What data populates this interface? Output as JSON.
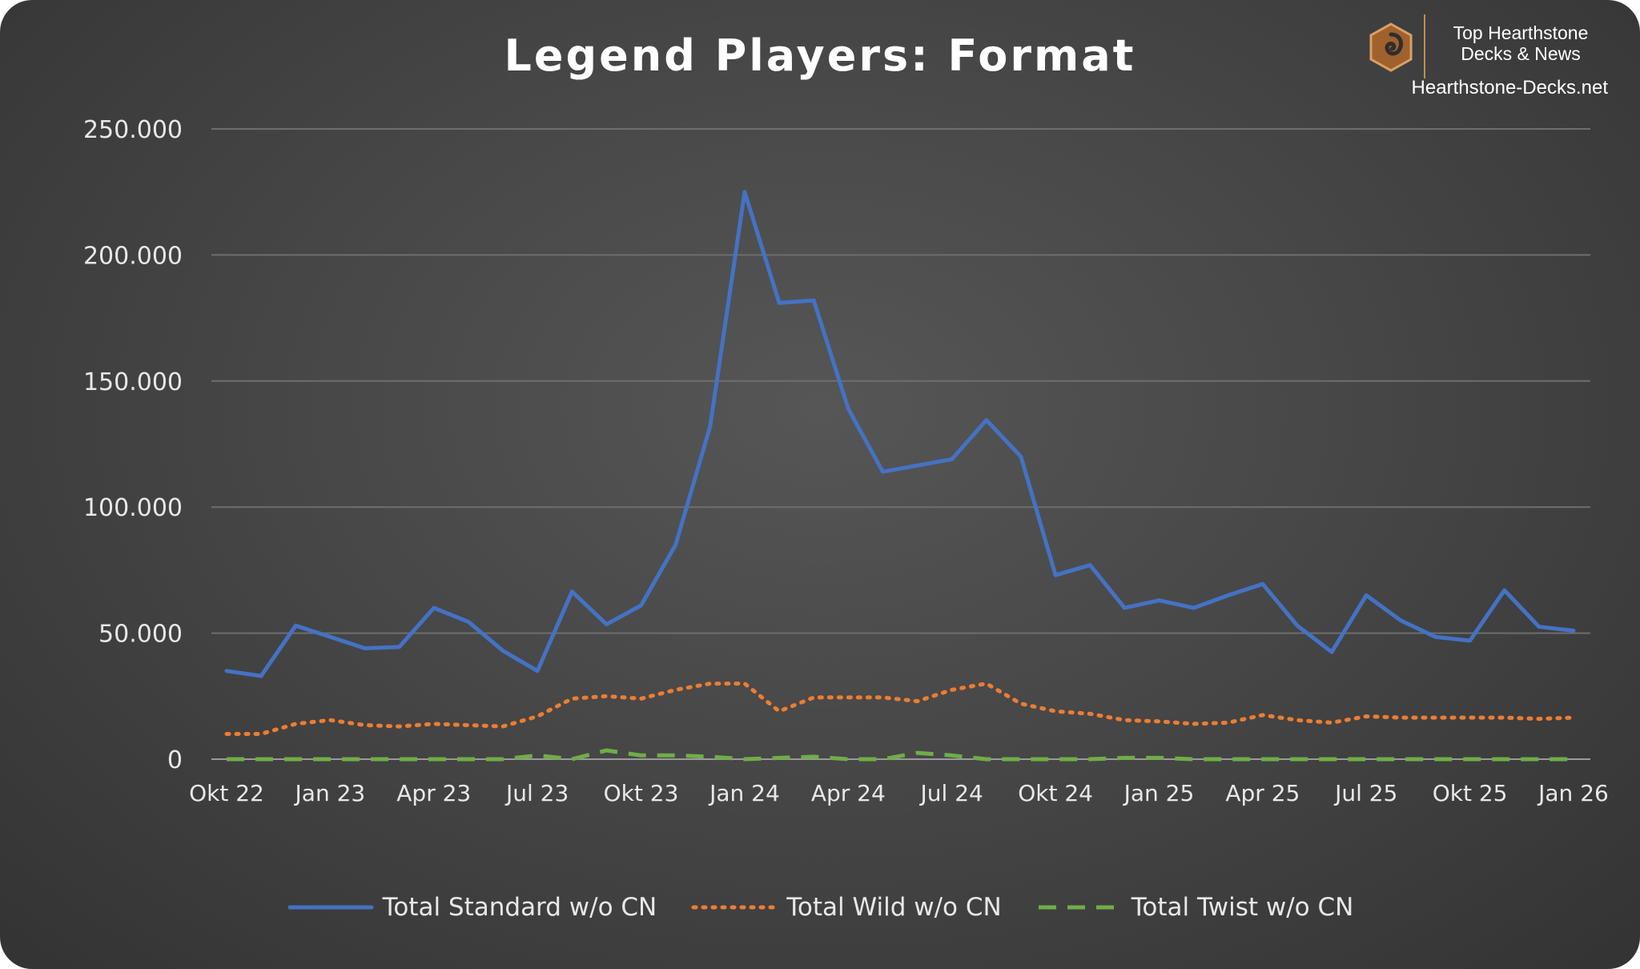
{
  "brand": {
    "line1": "Top Hearthstone",
    "line2": "Decks & News",
    "url": "Hearthstone-Decks.net"
  },
  "chart_data": {
    "type": "line",
    "title": "Legend Players: Format",
    "xlabel": "",
    "ylabel": "",
    "ylim": [
      0,
      250000
    ],
    "yticks": [
      0,
      50000,
      100000,
      150000,
      200000,
      250000
    ],
    "ytick_labels": [
      "0",
      "50.000",
      "100.000",
      "150.000",
      "200.000",
      "250.000"
    ],
    "x": [
      "Okt 22",
      "Nov 22",
      "Dez 22",
      "Jan 23",
      "Feb 23",
      "Mär 23",
      "Apr 23",
      "Mai 23",
      "Jun 23",
      "Jul 23",
      "Aug 23",
      "Sep 23",
      "Okt 23",
      "Nov 23",
      "Dez 23",
      "Jan 24",
      "Feb 24",
      "Mär 24",
      "Apr 24",
      "Mai 24",
      "Jun 24",
      "Jul 24",
      "Aug 24",
      "Sep 24",
      "Okt 24",
      "Nov 24",
      "Dez 24",
      "Jan 25",
      "Feb 25",
      "Mär 25",
      "Apr 25",
      "Mai 25",
      "Jun 25",
      "Jul 25",
      "Aug 25",
      "Sep 25",
      "Okt 25",
      "Nov 25",
      "Dez 25",
      "Jan 26"
    ],
    "xtick_labels": [
      {
        "index": 0,
        "label": "Okt 22"
      },
      {
        "index": 3,
        "label": "Jan 23"
      },
      {
        "index": 6,
        "label": "Apr 23"
      },
      {
        "index": 9,
        "label": "Jul 23"
      },
      {
        "index": 12,
        "label": "Okt 23"
      },
      {
        "index": 15,
        "label": "Jan 24"
      },
      {
        "index": 18,
        "label": "Apr 24"
      },
      {
        "index": 21,
        "label": "Jul 24"
      },
      {
        "index": 24,
        "label": "Okt 24"
      },
      {
        "index": 27,
        "label": "Jan 25"
      },
      {
        "index": 30,
        "label": "Apr 25"
      },
      {
        "index": 33,
        "label": "Jul 25"
      },
      {
        "index": 36,
        "label": "Okt 25"
      },
      {
        "index": 39,
        "label": "Jan 26"
      }
    ],
    "grid": true,
    "legend_position": "bottom",
    "series": [
      {
        "name": "Total Standard w/o CN",
        "color": "#4472c4",
        "style": "solid",
        "values": [
          35000,
          33000,
          53000,
          48500,
          44000,
          44500,
          60000,
          54500,
          43000,
          35000,
          66500,
          53500,
          61000,
          85000,
          132000,
          225000,
          181000,
          182000,
          139000,
          114000,
          116500,
          119000,
          134500,
          120000,
          73000,
          77000,
          60000,
          63000,
          60000,
          65000,
          69500,
          53000,
          42500,
          65000,
          55000,
          48500,
          47000,
          67000,
          52500,
          51000
        ]
      },
      {
        "name": "Total Wild w/o CN",
        "color": "#ed7d31",
        "style": "dotted",
        "values": [
          10000,
          10000,
          14000,
          15500,
          13500,
          13000,
          14000,
          13500,
          13000,
          17000,
          24000,
          25000,
          24000,
          27500,
          30000,
          30000,
          19000,
          24500,
          24500,
          24500,
          23000,
          27500,
          30000,
          22000,
          19000,
          18000,
          15500,
          15000,
          14000,
          14500,
          17500,
          15500,
          14500,
          17000,
          16500,
          16500,
          16500,
          16500,
          16000,
          16500
        ]
      },
      {
        "name": "Total Twist w/o CN",
        "color": "#70ad47",
        "style": "dashed",
        "values": [
          0,
          0,
          0,
          0,
          0,
          0,
          0,
          0,
          0,
          1500,
          0,
          3500,
          1500,
          1500,
          1000,
          0,
          500,
          1000,
          0,
          0,
          2500,
          1500,
          0,
          0,
          0,
          0,
          500,
          500,
          0,
          0,
          0,
          0,
          0,
          0,
          0,
          0,
          0,
          0,
          0,
          0
        ]
      }
    ]
  }
}
